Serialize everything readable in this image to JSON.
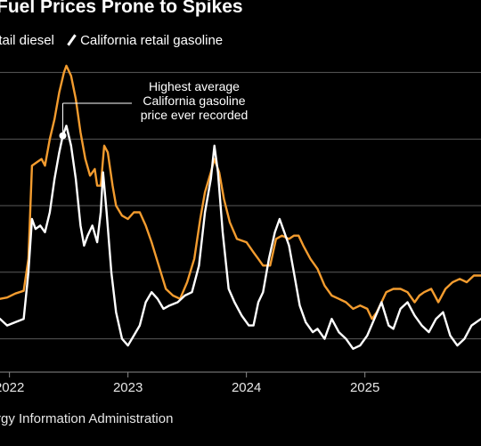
{
  "chart_data": {
    "type": "line",
    "title": "Fuel Prices Prone to Spikes",
    "source": "rgy Information Administration",
    "ylim": [
      2.5,
      7.5
    ],
    "gridlines": [
      3,
      4,
      5,
      6,
      7
    ],
    "xlim": [
      2021.92,
      2025.98
    ],
    "x_ticks": [
      {
        "label": "2022",
        "value": 2022.0
      },
      {
        "label": "2023",
        "value": 2023.0
      },
      {
        "label": "2024",
        "value": 2024.0
      },
      {
        "label": "2025",
        "value": 2025.0
      }
    ],
    "legend": "top-left",
    "series": [
      {
        "name": "etail diesel",
        "color": "#f39c2f",
        "x": [
          2021.92,
          2021.98,
          2022.05,
          2022.12,
          2022.16,
          2022.19,
          2022.23,
          2022.27,
          2022.3,
          2022.34,
          2022.38,
          2022.42,
          2022.46,
          2022.48,
          2022.52,
          2022.56,
          2022.6,
          2022.64,
          2022.68,
          2022.72,
          2022.74,
          2022.77,
          2022.8,
          2022.83,
          2022.87,
          2022.9,
          2022.95,
          2023.0,
          2023.05,
          2023.1,
          2023.15,
          2023.2,
          2023.26,
          2023.32,
          2023.38,
          2023.44,
          2023.5,
          2023.56,
          2023.61,
          2023.65,
          2023.7,
          2023.73,
          2023.77,
          2023.81,
          2023.86,
          2023.92,
          2024.0,
          2024.06,
          2024.1,
          2024.14,
          2024.2,
          2024.25,
          2024.3,
          2024.36,
          2024.4,
          2024.44,
          2024.48,
          2024.54,
          2024.6,
          2024.66,
          2024.72,
          2024.78,
          2024.84,
          2024.9,
          2024.96,
          2025.02,
          2025.06,
          2025.1,
          2025.14,
          2025.18,
          2025.24,
          2025.3,
          2025.36,
          2025.42,
          2025.46,
          2025.5,
          2025.56,
          2025.62,
          2025.68,
          2025.74,
          2025.8,
          2025.86,
          2025.92,
          2025.98
        ],
        "values": [
          3.6,
          3.62,
          3.68,
          3.72,
          4.2,
          5.6,
          5.65,
          5.7,
          5.6,
          6.0,
          6.3,
          6.7,
          7.0,
          7.1,
          6.95,
          6.6,
          6.1,
          5.7,
          5.45,
          5.55,
          5.3,
          5.3,
          5.9,
          5.8,
          5.3,
          5.0,
          4.85,
          4.8,
          4.9,
          4.9,
          4.7,
          4.45,
          4.1,
          3.75,
          3.65,
          3.6,
          3.85,
          4.2,
          4.8,
          5.2,
          5.5,
          5.7,
          5.5,
          5.1,
          4.75,
          4.5,
          4.45,
          4.3,
          4.2,
          4.1,
          4.1,
          4.5,
          4.55,
          4.5,
          4.55,
          4.55,
          4.4,
          4.2,
          4.05,
          3.8,
          3.65,
          3.6,
          3.55,
          3.45,
          3.5,
          3.45,
          3.3,
          3.4,
          3.55,
          3.7,
          3.75,
          3.75,
          3.7,
          3.55,
          3.65,
          3.7,
          3.75,
          3.55,
          3.75,
          3.85,
          3.9,
          3.85,
          3.95,
          3.95
        ]
      },
      {
        "name": "California retail gasoline",
        "color": "#ffffff",
        "x": [
          2021.92,
          2021.98,
          2022.05,
          2022.12,
          2022.16,
          2022.19,
          2022.22,
          2022.26,
          2022.3,
          2022.34,
          2022.38,
          2022.42,
          2022.45,
          2022.48,
          2022.52,
          2022.56,
          2022.6,
          2022.63,
          2022.66,
          2022.7,
          2022.74,
          2022.77,
          2022.79,
          2022.82,
          2022.86,
          2022.9,
          2022.95,
          2023.0,
          2023.05,
          2023.1,
          2023.15,
          2023.2,
          2023.25,
          2023.3,
          2023.35,
          2023.42,
          2023.48,
          2023.54,
          2023.6,
          2023.65,
          2023.7,
          2023.73,
          2023.76,
          2023.8,
          2023.85,
          2023.9,
          2023.96,
          2024.02,
          2024.06,
          2024.1,
          2024.14,
          2024.19,
          2024.24,
          2024.28,
          2024.32,
          2024.36,
          2024.4,
          2024.45,
          2024.5,
          2024.56,
          2024.6,
          2024.66,
          2024.72,
          2024.78,
          2024.84,
          2024.9,
          2024.96,
          2025.02,
          2025.08,
          2025.14,
          2025.2,
          2025.24,
          2025.3,
          2025.36,
          2025.42,
          2025.48,
          2025.54,
          2025.6,
          2025.66,
          2025.72,
          2025.78,
          2025.84,
          2025.9,
          2025.98
        ],
        "values": [
          3.3,
          3.2,
          3.25,
          3.3,
          4.0,
          4.8,
          4.65,
          4.7,
          4.6,
          4.9,
          5.4,
          5.8,
          6.05,
          6.2,
          5.9,
          5.4,
          4.7,
          4.4,
          4.55,
          4.7,
          4.45,
          4.9,
          5.5,
          4.9,
          4.0,
          3.4,
          3.0,
          2.9,
          3.05,
          3.2,
          3.55,
          3.7,
          3.6,
          3.45,
          3.5,
          3.55,
          3.65,
          3.7,
          4.1,
          4.9,
          5.4,
          5.9,
          5.5,
          4.6,
          3.75,
          3.55,
          3.35,
          3.2,
          3.2,
          3.55,
          3.7,
          4.2,
          4.6,
          4.8,
          4.6,
          4.4,
          4.0,
          3.5,
          3.25,
          3.1,
          3.15,
          3.0,
          3.3,
          3.1,
          3.0,
          2.85,
          2.9,
          3.05,
          3.3,
          3.55,
          3.2,
          3.15,
          3.45,
          3.55,
          3.35,
          3.2,
          3.1,
          3.3,
          3.4,
          3.05,
          2.9,
          3.0,
          3.2,
          3.3
        ]
      }
    ],
    "annotation": {
      "lines": [
        "Highest average",
        "California gasoline",
        "price ever recorded"
      ],
      "point": {
        "x": 2022.45,
        "y": 6.05
      }
    }
  }
}
